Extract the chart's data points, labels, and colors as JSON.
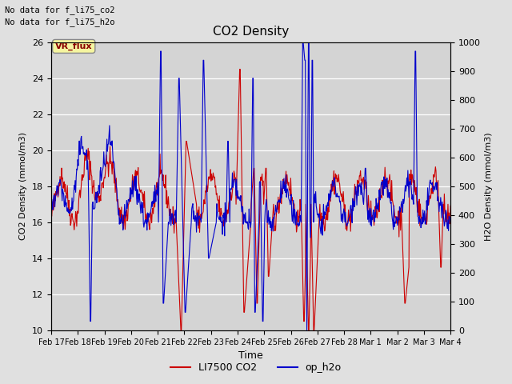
{
  "title": "CO2 Density",
  "xlabel": "Time",
  "ylabel_left": "CO2 Density (mmol/m3)",
  "ylabel_right": "H2O Density (mmol/m3)",
  "ylim_left": [
    10,
    26
  ],
  "ylim_right": [
    0,
    1000
  ],
  "yticks_left": [
    10,
    12,
    14,
    16,
    18,
    20,
    22,
    24,
    26
  ],
  "yticks_right": [
    0,
    100,
    200,
    300,
    400,
    500,
    600,
    700,
    800,
    900,
    1000
  ],
  "xtick_labels": [
    "Feb 17",
    "Feb 18",
    "Feb 19",
    "Feb 20",
    "Feb 21",
    "Feb 22",
    "Feb 23",
    "Feb 24",
    "Feb 25",
    "Feb 26",
    "Feb 27",
    "Feb 28",
    "Mar 1",
    "Mar 2",
    "Mar 3",
    "Mar 4"
  ],
  "no_data_text1": "No data for f_li75_co2",
  "no_data_text2": "No data for f̲li75̲h2o",
  "vr_flux_label": "VR_flux",
  "legend_co2_label": "LI7500 CO2",
  "legend_h2o_label": "op_h2o",
  "co2_color": "#cc0000",
  "h2o_color": "#0000cc",
  "fig_bg_color": "#e0e0e0",
  "plot_bg_color": "#d4d4d4",
  "linewidth": 0.8,
  "seed": 42,
  "n_days": 16
}
